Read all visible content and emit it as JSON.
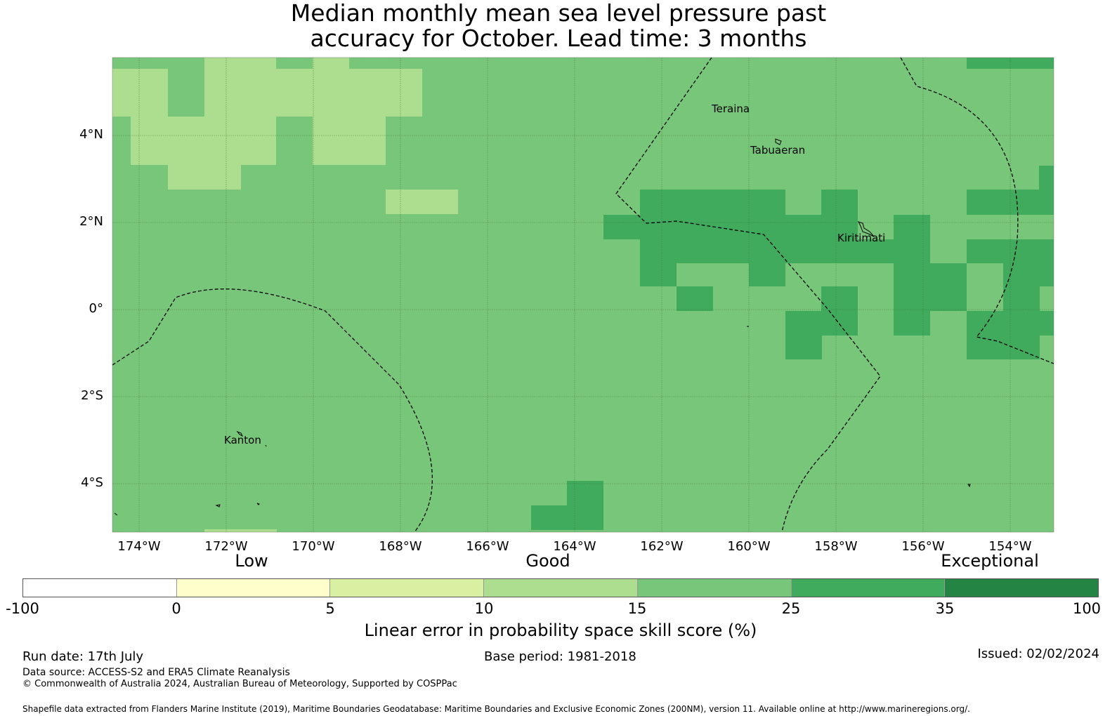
{
  "title": {
    "line1": "Median monthly mean sea level pressure past",
    "line2": "accuracy for October. Lead time: 3 months"
  },
  "map": {
    "lat_ticks": [
      "4°N",
      "2°N",
      "0°",
      "2°S",
      "4°S"
    ],
    "lon_ticks": [
      "174°W",
      "172°W",
      "170°W",
      "168°W",
      "166°W",
      "164°W",
      "162°W",
      "160°W",
      "158°W",
      "156°W",
      "154°W"
    ],
    "places": [
      "Teraina",
      "Tabuaeran",
      "Kiritimati",
      "Kanton"
    ]
  },
  "legend": {
    "categories": [
      "Low",
      "Good",
      "Exceptional"
    ],
    "ticks": [
      "-100",
      "0",
      "5",
      "10",
      "15",
      "25",
      "35",
      "100"
    ],
    "colors": [
      "#ffffff",
      "#ffffcc",
      "#d9f0a3",
      "#addd8e",
      "#78c679",
      "#41ab5d",
      "#238443"
    ],
    "label": "Linear error in probability space skill score (%)"
  },
  "footer": {
    "run_date": "Run date: 17th July",
    "base_period": "Base period: 1981-2018",
    "issued": "Issued: 02/02/2024",
    "data_source": "Data source: ACCESS-S2 and ERA5 Climate Reanalysis",
    "copyright": "© Commonwealth of Australia 2024, Australian Bureau of Meteorology, Supported by COSPPac",
    "shapefile": "Shapefile data extracted from Flanders Marine Institute (2019), Maritime Boundaries Geodatabase: Maritime Boundaries and Exclusive Economic Zones (200NM), version 11. Available online at http://www.marineregions.org/."
  }
}
